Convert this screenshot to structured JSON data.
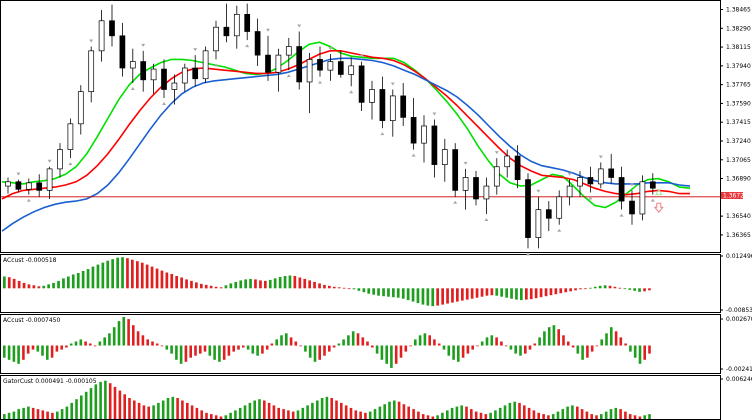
{
  "chart_data": [
    {
      "type": "candlestick",
      "y_ticks": [
        "1.38465",
        "1.38290",
        "1.38115",
        "1.37940",
        "1.37765",
        "1.37590",
        "1.37415",
        "1.37240",
        "1.37065",
        "1.36890",
        "1.36540",
        "1.36365"
      ],
      "y_tick_values": [
        1.38465,
        1.3829,
        1.38115,
        1.3794,
        1.37765,
        1.3759,
        1.37415,
        1.3724,
        1.37065,
        1.3689,
        1.3654,
        1.36365
      ],
      "ylim": [
        1.36215,
        1.38535
      ],
      "current_price": "1.36720",
      "current_price_value": 1.3672,
      "colors": {
        "bull": "#ffffff",
        "bear": "#000000",
        "price_line": "#cc0000",
        "price_tag": "#e8383d",
        "fast": "#00e000",
        "mid": "#ff0000",
        "slow": "#1a5fd0",
        "arrow": "#a8a8a8",
        "signal_up": "#a0e8a0",
        "signal_down": "#f08080"
      },
      "series": [
        {
          "key": "fast",
          "values": [
            1.3686,
            1.3685,
            1.3684,
            1.3686,
            1.3687,
            1.3689,
            1.3693,
            1.37,
            1.3712,
            1.3728,
            1.3745,
            1.3762,
            1.3776,
            1.3786,
            1.3792,
            1.3797,
            1.38,
            1.38,
            1.3799,
            1.3797,
            1.3795,
            1.3793,
            1.379,
            1.3787,
            1.3786,
            1.3787,
            1.3792,
            1.3799,
            1.3807,
            1.3814,
            1.3816,
            1.3812,
            1.3806,
            1.3803,
            1.3802,
            1.3801,
            1.3801,
            1.3801,
            1.3797,
            1.379,
            1.3782,
            1.3772,
            1.3761,
            1.3749,
            1.3735,
            1.3719,
            1.3705,
            1.3693,
            1.3685,
            1.3682,
            1.3683,
            1.3688,
            1.3693,
            1.3691,
            1.3682,
            1.3672,
            1.3664,
            1.3662,
            1.3667,
            1.3675,
            1.3683,
            1.3688,
            1.3689,
            1.3686,
            1.3681,
            1.368
          ]
        },
        {
          "key": "mid",
          "values": [
            1.367,
            1.3675,
            1.3678,
            1.3679,
            1.368,
            1.3681,
            1.3683,
            1.3686,
            1.3692,
            1.3701,
            1.3712,
            1.3725,
            1.3739,
            1.3752,
            1.3764,
            1.3774,
            1.3782,
            1.3788,
            1.3791,
            1.3792,
            1.3791,
            1.379,
            1.3789,
            1.3788,
            1.3787,
            1.3787,
            1.3788,
            1.3791,
            1.3795,
            1.38,
            1.3805,
            1.3808,
            1.3808,
            1.3806,
            1.3804,
            1.3802,
            1.3801,
            1.3799,
            1.3795,
            1.3789,
            1.3782,
            1.3774,
            1.3766,
            1.3757,
            1.3747,
            1.3737,
            1.3727,
            1.3717,
            1.3708,
            1.3701,
            1.3696,
            1.3692,
            1.3691,
            1.369,
            1.3688,
            1.3684,
            1.368,
            1.3677,
            1.3675,
            1.3674,
            1.3675,
            1.3677,
            1.3678,
            1.3677,
            1.3675,
            1.3675
          ]
        },
        {
          "key": "slow",
          "values": [
            1.364,
            1.3647,
            1.3653,
            1.3658,
            1.3662,
            1.3665,
            1.3667,
            1.3668,
            1.367,
            1.3675,
            1.3683,
            1.3694,
            1.3707,
            1.3721,
            1.3735,
            1.3748,
            1.3759,
            1.3768,
            1.3774,
            1.3778,
            1.378,
            1.3781,
            1.3782,
            1.3783,
            1.3784,
            1.3785,
            1.3786,
            1.3788,
            1.3791,
            1.3794,
            1.3797,
            1.38,
            1.3801,
            1.3801,
            1.38,
            1.3799,
            1.3797,
            1.3794,
            1.379,
            1.3786,
            1.3781,
            1.3776,
            1.3771,
            1.3765,
            1.3757,
            1.3748,
            1.3738,
            1.3728,
            1.3719,
            1.3711,
            1.3705,
            1.3701,
            1.3699,
            1.3697,
            1.3694,
            1.369,
            1.3687,
            1.3685,
            1.3684,
            1.3684,
            1.3684,
            1.3685,
            1.3685,
            1.3685,
            1.3683,
            1.3682
          ]
        }
      ],
      "candles": [
        [
          1.3682,
          1.369,
          1.3675,
          1.3686
        ],
        [
          1.3686,
          1.3688,
          1.3676,
          1.3679
        ],
        [
          1.3679,
          1.3689,
          1.3674,
          1.3685
        ],
        [
          1.3685,
          1.3693,
          1.3672,
          1.3678
        ],
        [
          1.3678,
          1.37,
          1.367,
          1.3698
        ],
        [
          1.3698,
          1.3722,
          1.369,
          1.3716
        ],
        [
          1.3716,
          1.3745,
          1.3708,
          1.374
        ],
        [
          1.374,
          1.3776,
          1.373,
          1.377
        ],
        [
          1.377,
          1.3812,
          1.376,
          1.3808
        ],
        [
          1.3808,
          1.3846,
          1.3798,
          1.3836
        ],
        [
          1.3836,
          1.3851,
          1.3812,
          1.3822
        ],
        [
          1.3822,
          1.3834,
          1.3784,
          1.3792
        ],
        [
          1.3792,
          1.381,
          1.3778,
          1.3798
        ],
        [
          1.3798,
          1.3808,
          1.377,
          1.3781
        ],
        [
          1.3781,
          1.3796,
          1.3768,
          1.3791
        ],
        [
          1.3791,
          1.38,
          1.3764,
          1.3772
        ],
        [
          1.3772,
          1.3786,
          1.3758,
          1.3778
        ],
        [
          1.3778,
          1.3796,
          1.377,
          1.3792
        ],
        [
          1.3792,
          1.3804,
          1.3775,
          1.3782
        ],
        [
          1.3782,
          1.3812,
          1.3778,
          1.3808
        ],
        [
          1.3808,
          1.3836,
          1.38,
          1.383
        ],
        [
          1.383,
          1.3852,
          1.3816,
          1.3822
        ],
        [
          1.3822,
          1.385,
          1.381,
          1.3842
        ],
        [
          1.3842,
          1.3852,
          1.3818,
          1.3826
        ],
        [
          1.3826,
          1.3838,
          1.3794,
          1.3804
        ],
        [
          1.3804,
          1.3822,
          1.378,
          1.3788
        ],
        [
          1.3788,
          1.381,
          1.377,
          1.3804
        ],
        [
          1.3804,
          1.382,
          1.379,
          1.3812
        ],
        [
          1.3812,
          1.3826,
          1.3772,
          1.3779
        ],
        [
          1.3779,
          1.3806,
          1.375,
          1.38
        ],
        [
          1.38,
          1.3812,
          1.3784,
          1.379
        ],
        [
          1.379,
          1.3805,
          1.378,
          1.3798
        ],
        [
          1.3798,
          1.3808,
          1.3783,
          1.3786
        ],
        [
          1.3786,
          1.3802,
          1.3775,
          1.3794
        ],
        [
          1.3794,
          1.3798,
          1.3752,
          1.376
        ],
        [
          1.376,
          1.378,
          1.3744,
          1.3772
        ],
        [
          1.3772,
          1.3784,
          1.3736,
          1.3743
        ],
        [
          1.3743,
          1.3772,
          1.3728,
          1.3766
        ],
        [
          1.3766,
          1.3778,
          1.3738,
          1.3746
        ],
        [
          1.3746,
          1.3764,
          1.3716,
          1.3722
        ],
        [
          1.3722,
          1.3748,
          1.3704,
          1.3738
        ],
        [
          1.3738,
          1.3744,
          1.369,
          1.3702
        ],
        [
          1.3702,
          1.3726,
          1.3686,
          1.3716
        ],
        [
          1.3716,
          1.3722,
          1.3672,
          1.3678
        ],
        [
          1.3678,
          1.3698,
          1.366,
          1.369
        ],
        [
          1.369,
          1.3696,
          1.3664,
          1.367
        ],
        [
          1.367,
          1.369,
          1.3656,
          1.3682
        ],
        [
          1.3682,
          1.3708,
          1.3674,
          1.37
        ],
        [
          1.37,
          1.3716,
          1.369,
          1.371
        ],
        [
          1.371,
          1.372,
          1.368,
          1.3688
        ],
        [
          1.3688,
          1.3694,
          1.3624,
          1.3634
        ],
        [
          1.3634,
          1.3672,
          1.3624,
          1.366
        ],
        [
          1.366,
          1.3668,
          1.364,
          1.3652
        ],
        [
          1.3652,
          1.3678,
          1.3646,
          1.3672
        ],
        [
          1.3672,
          1.3688,
          1.3664,
          1.3682
        ],
        [
          1.3682,
          1.3696,
          1.3672,
          1.369
        ],
        [
          1.369,
          1.37,
          1.3676,
          1.3684
        ],
        [
          1.3684,
          1.3704,
          1.368,
          1.3698
        ],
        [
          1.3698,
          1.3712,
          1.3684,
          1.369
        ],
        [
          1.369,
          1.37,
          1.366,
          1.3668
        ],
        [
          1.3668,
          1.3678,
          1.3646,
          1.3656
        ],
        [
          1.3656,
          1.3692,
          1.365,
          1.3686
        ],
        [
          1.3686,
          1.3694,
          1.3674,
          1.368
        ]
      ],
      "arrows_down_index": [
        1,
        4,
        8,
        10,
        13,
        18,
        21,
        25,
        28,
        31,
        34,
        37,
        41,
        44,
        47,
        51,
        54,
        57,
        60
      ],
      "arrows_up_index": [
        2,
        6,
        12,
        15,
        20,
        23,
        27,
        30,
        33,
        36,
        39,
        43,
        46,
        50,
        53,
        56,
        59,
        62
      ]
    },
    {
      "type": "histogram",
      "label": "ACcust -0.000518",
      "y_ticks": [
        "0.012496",
        "-0.008537"
      ],
      "ylim": [
        -0.0092,
        0.0131
      ],
      "values": [
        0.0048,
        0.0045,
        0.0038,
        0.003,
        0.0022,
        0.0016,
        0.0012,
        0.0008,
        0.001,
        0.0016,
        0.0022,
        0.003,
        0.004,
        0.0048,
        0.0056,
        0.0062,
        0.007,
        0.0078,
        0.0088,
        0.0096,
        0.0104,
        0.0112,
        0.0118,
        0.0124,
        0.0126,
        0.0122,
        0.0116,
        0.011,
        0.0104,
        0.0096,
        0.0088,
        0.008,
        0.0072,
        0.0064,
        0.0058,
        0.005,
        0.0044,
        0.0036,
        0.003,
        0.0024,
        0.0018,
        0.0014,
        0.001,
        0.0006,
        0.0004,
        0.0012,
        0.002,
        0.0026,
        0.0032,
        0.0036,
        0.0038,
        0.0036,
        0.0032,
        0.003,
        0.0034,
        0.004,
        0.0046,
        0.005,
        0.0052,
        0.005,
        0.0044,
        0.0038,
        0.0032,
        0.0026,
        0.002,
        0.0014,
        0.001,
        0.0006,
        0.0004,
        0.0002,
        0.0,
        -0.0004,
        -0.001,
        -0.0016,
        -0.0022,
        -0.0026,
        -0.003,
        -0.0032,
        -0.0034,
        -0.0036,
        -0.0038,
        -0.0042,
        -0.0048,
        -0.0054,
        -0.006,
        -0.0066,
        -0.007,
        -0.0072,
        -0.007,
        -0.0066,
        -0.0062,
        -0.0058,
        -0.0054,
        -0.005,
        -0.0046,
        -0.0042,
        -0.0038,
        -0.0034,
        -0.003,
        -0.0028,
        -0.003,
        -0.0034,
        -0.0038,
        -0.0042,
        -0.0046,
        -0.0048,
        -0.0046,
        -0.0044,
        -0.004,
        -0.0036,
        -0.0032,
        -0.0028,
        -0.0024,
        -0.002,
        -0.0016,
        -0.0012,
        -0.0008,
        -0.0004,
        -0.0002,
        0.0002,
        0.0006,
        0.001,
        0.0012,
        0.001,
        0.0006,
        0.0002,
        -0.0002,
        -0.0006,
        -0.001,
        -0.0014,
        -0.0012,
        -0.0008
      ]
    },
    {
      "type": "histogram",
      "label": "ACcust -0.0007450",
      "y_ticks": [
        "0.0026701",
        "-0.0024127"
      ],
      "ylim": [
        -0.0026,
        0.0029
      ],
      "values": [
        -0.0012,
        -0.0014,
        -0.0016,
        -0.0018,
        -0.0014,
        -0.0008,
        -0.0004,
        -0.0006,
        -0.001,
        -0.0014,
        -0.0012,
        -0.0006,
        -0.0004,
        -0.0002,
        0.0002,
        0.0004,
        0.0006,
        0.0004,
        0.0002,
        0.0,
        0.0004,
        0.0008,
        0.0012,
        0.0018,
        0.0024,
        0.0028,
        0.0026,
        0.002,
        0.0014,
        0.001,
        0.0006,
        0.0004,
        0.0002,
        0.0,
        -0.0004,
        -0.0008,
        -0.0014,
        -0.0018,
        -0.0016,
        -0.0012,
        -0.001,
        -0.0008,
        -0.0006,
        -0.001,
        -0.0014,
        -0.0016,
        -0.0014,
        -0.001,
        -0.0006,
        -0.0004,
        -0.0002,
        -0.0004,
        -0.0008,
        -0.001,
        -0.0008,
        -0.0004,
        0.0002,
        0.0006,
        0.001,
        0.0012,
        0.0008,
        0.0004,
        0.0,
        -0.0006,
        -0.0012,
        -0.0016,
        -0.0014,
        -0.001,
        -0.0006,
        -0.0002,
        0.0002,
        0.0006,
        0.001,
        0.0014,
        0.0012,
        0.0008,
        0.0004,
        -0.0002,
        -0.0008,
        -0.0014,
        -0.0018,
        -0.0022,
        -0.0018,
        -0.0012,
        -0.0006,
        0.0,
        0.0006,
        0.001,
        0.0012,
        0.001,
        0.0006,
        0.0002,
        -0.0004,
        -0.001,
        -0.0014,
        -0.0016,
        -0.0012,
        -0.0008,
        -0.0004,
        0.0,
        0.0004,
        0.0008,
        0.001,
        0.0008,
        0.0004,
        0.0,
        -0.0004,
        -0.0008,
        -0.001,
        -0.0008,
        -0.0004,
        0.0002,
        0.0008,
        0.0014,
        0.0018,
        0.002,
        0.0016,
        0.001,
        0.0004,
        -0.0002,
        -0.0008,
        -0.0014,
        -0.0012,
        -0.0006,
        0.0,
        0.0006,
        0.0012,
        0.0018,
        0.0014,
        0.0008,
        0.0002,
        -0.0006,
        -0.0012,
        -0.0018,
        -0.0014,
        -0.0008
      ]
    },
    {
      "type": "histogram",
      "label": "GatorCust 0.000491 -0.000105",
      "y_ticks": [
        "0.006246"
      ],
      "ylim": [
        0,
        0.0068
      ],
      "values": [
        0.0008,
        0.001,
        0.0012,
        0.0016,
        0.0018,
        0.002,
        0.0018,
        0.0016,
        0.0014,
        0.0012,
        0.001,
        0.0012,
        0.0016,
        0.002,
        0.0026,
        0.0032,
        0.0038,
        0.0044,
        0.005,
        0.0056,
        0.006,
        0.0062,
        0.0058,
        0.0052,
        0.0046,
        0.004,
        0.0034,
        0.003,
        0.0026,
        0.0022,
        0.002,
        0.0022,
        0.0026,
        0.003,
        0.0034,
        0.0036,
        0.0034,
        0.003,
        0.0026,
        0.0022,
        0.0018,
        0.0014,
        0.001,
        0.0008,
        0.0006,
        0.0004,
        0.0006,
        0.001,
        0.0014,
        0.0018,
        0.0022,
        0.0026,
        0.003,
        0.0032,
        0.003,
        0.0026,
        0.0022,
        0.0018,
        0.0016,
        0.0014,
        0.0012,
        0.0014,
        0.0018,
        0.0022,
        0.0026,
        0.003,
        0.0034,
        0.0036,
        0.0034,
        0.003,
        0.0026,
        0.0022,
        0.0018,
        0.0014,
        0.0012,
        0.001,
        0.0012,
        0.0016,
        0.002,
        0.0024,
        0.0028,
        0.003,
        0.0028,
        0.0024,
        0.002,
        0.0016,
        0.0012,
        0.0008,
        0.0006,
        0.0004,
        0.0006,
        0.001,
        0.0014,
        0.0018,
        0.002,
        0.0022,
        0.002,
        0.0016,
        0.0012,
        0.001,
        0.0008,
        0.001,
        0.0014,
        0.0018,
        0.0022,
        0.0026,
        0.0028,
        0.0026,
        0.0022,
        0.0018,
        0.0014,
        0.001,
        0.0008,
        0.0006,
        0.0008,
        0.0012,
        0.0016,
        0.002,
        0.0022,
        0.002,
        0.0016,
        0.0012,
        0.0008,
        0.0006,
        0.0008,
        0.0012,
        0.0016,
        0.0018,
        0.0016,
        0.0012,
        0.0008,
        0.0006,
        0.0004,
        0.0006,
        0.0008
      ]
    }
  ]
}
